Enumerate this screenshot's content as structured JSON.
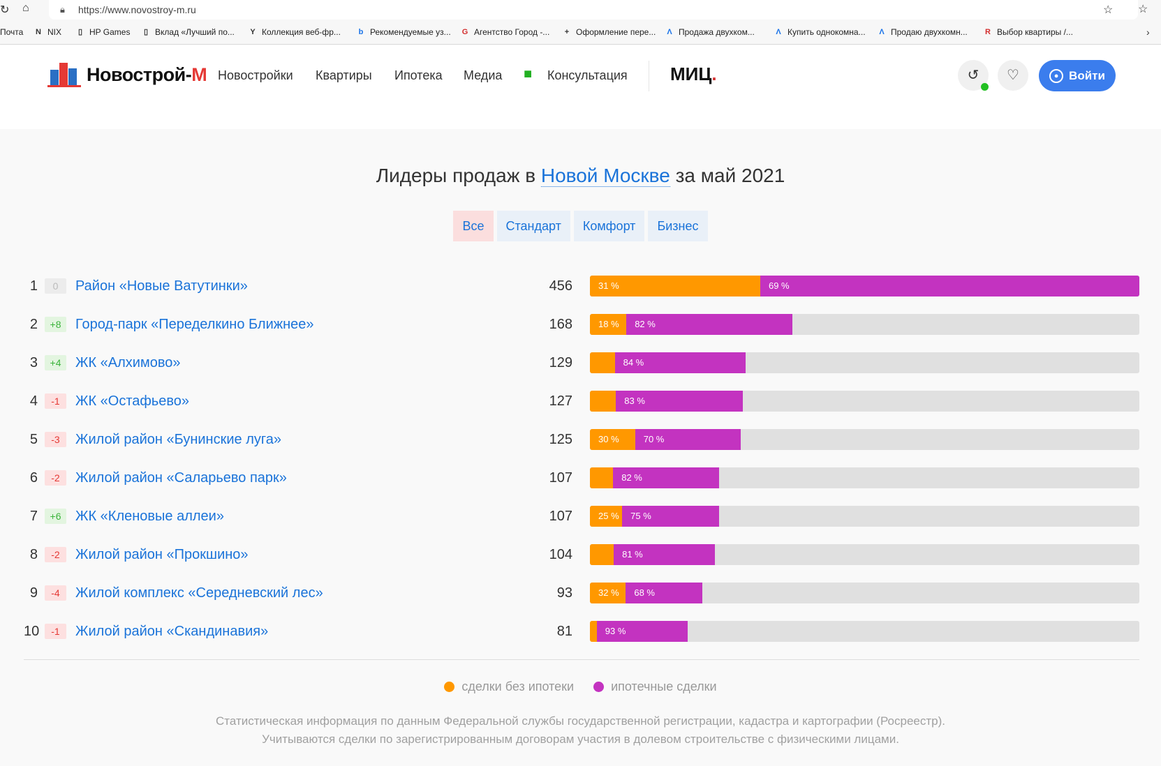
{
  "browser": {
    "url": "https://www.novostroy-m.ru",
    "bookmarks": [
      "Почта",
      "NIX",
      "HP Games",
      "Вклад «Лучший по...",
      "Коллекция веб-фр...",
      "Рекомендуемые уз...",
      "Агентство Город -...",
      "Оформление пере...",
      "Продажа двухком...",
      "Купить однокомна...",
      "Продаю двухкомн...",
      "Выбор квартиры /..."
    ]
  },
  "header": {
    "logo_main": "Новострой-",
    "logo_accent": "М",
    "nav": [
      "Новостройки",
      "Квартиры",
      "Ипотека",
      "Медиа",
      "Консультация"
    ],
    "partner": "МИЦ",
    "login": "Войти"
  },
  "page": {
    "title_before": "Лидеры продаж в ",
    "title_link": "Новой Москве",
    "title_after": " за май 2021",
    "tabs": [
      "Все",
      "Стандарт",
      "Комфорт",
      "Бизнес"
    ],
    "active_tab": "Все"
  },
  "colors": {
    "no_mortgage": "#ff9800",
    "mortgage": "#c333c0",
    "track": "#e0e0e0",
    "link": "#1a73d9"
  },
  "chart_data": {
    "type": "bar",
    "stacked": true,
    "max": 456,
    "series": [
      {
        "name": "сделки без ипотеки"
      },
      {
        "name": "ипотечные сделки"
      }
    ],
    "rows": [
      {
        "rank": "1",
        "change": "0",
        "name": "Район «Новые Ватутинки»",
        "count": 456,
        "no_mortgage_label": "31 %",
        "mortgage_label": "69 %",
        "mortgage_pct": 69
      },
      {
        "rank": "2",
        "change": "+8",
        "name": "Город-парк «Переделкино Ближнее»",
        "count": 168,
        "no_mortgage_label": "18 %",
        "mortgage_label": "82 %",
        "mortgage_pct": 82
      },
      {
        "rank": "3",
        "change": "+4",
        "name": "ЖК «Алхимово»",
        "count": 129,
        "no_mortgage_label": "",
        "mortgage_label": "84 %",
        "mortgage_pct": 84
      },
      {
        "rank": "4",
        "change": "-1",
        "name": "ЖК «Остафьево»",
        "count": 127,
        "no_mortgage_label": "",
        "mortgage_label": "83 %",
        "mortgage_pct": 83
      },
      {
        "rank": "5",
        "change": "-3",
        "name": "Жилой район «Бунинские луга»",
        "count": 125,
        "no_mortgage_label": "30 %",
        "mortgage_label": "70 %",
        "mortgage_pct": 70
      },
      {
        "rank": "6",
        "change": "-2",
        "name": "Жилой район «Саларьево парк»",
        "count": 107,
        "no_mortgage_label": "",
        "mortgage_label": "82 %",
        "mortgage_pct": 82
      },
      {
        "rank": "7",
        "change": "+6",
        "name": "ЖК «Кленовые аллеи»",
        "count": 107,
        "no_mortgage_label": "25 %",
        "mortgage_label": "75 %",
        "mortgage_pct": 75
      },
      {
        "rank": "8",
        "change": "-2",
        "name": "Жилой район «Прокшино»",
        "count": 104,
        "no_mortgage_label": "",
        "mortgage_label": "81 %",
        "mortgage_pct": 81
      },
      {
        "rank": "9",
        "change": "-4",
        "name": "Жилой комплекс «Середневский лес»",
        "count": 93,
        "no_mortgage_label": "32 %",
        "mortgage_label": "68 %",
        "mortgage_pct": 68
      },
      {
        "rank": "10",
        "change": "-1",
        "name": "Жилой район «Скандинавия»",
        "count": 81,
        "no_mortgage_label": "",
        "mortgage_label": "93 %",
        "mortgage_pct": 93
      }
    ]
  },
  "legend": {
    "no_mortgage": "сделки без ипотеки",
    "mortgage": "ипотечные сделки"
  },
  "footer": {
    "line1": "Статистическая информация по данным Федеральной службы государственной регистрации, кадастра и картографии (Росреестр).",
    "line2": "Учитываются сделки по зарегистрированным договорам участия в долевом строительстве с физическими лицами."
  }
}
